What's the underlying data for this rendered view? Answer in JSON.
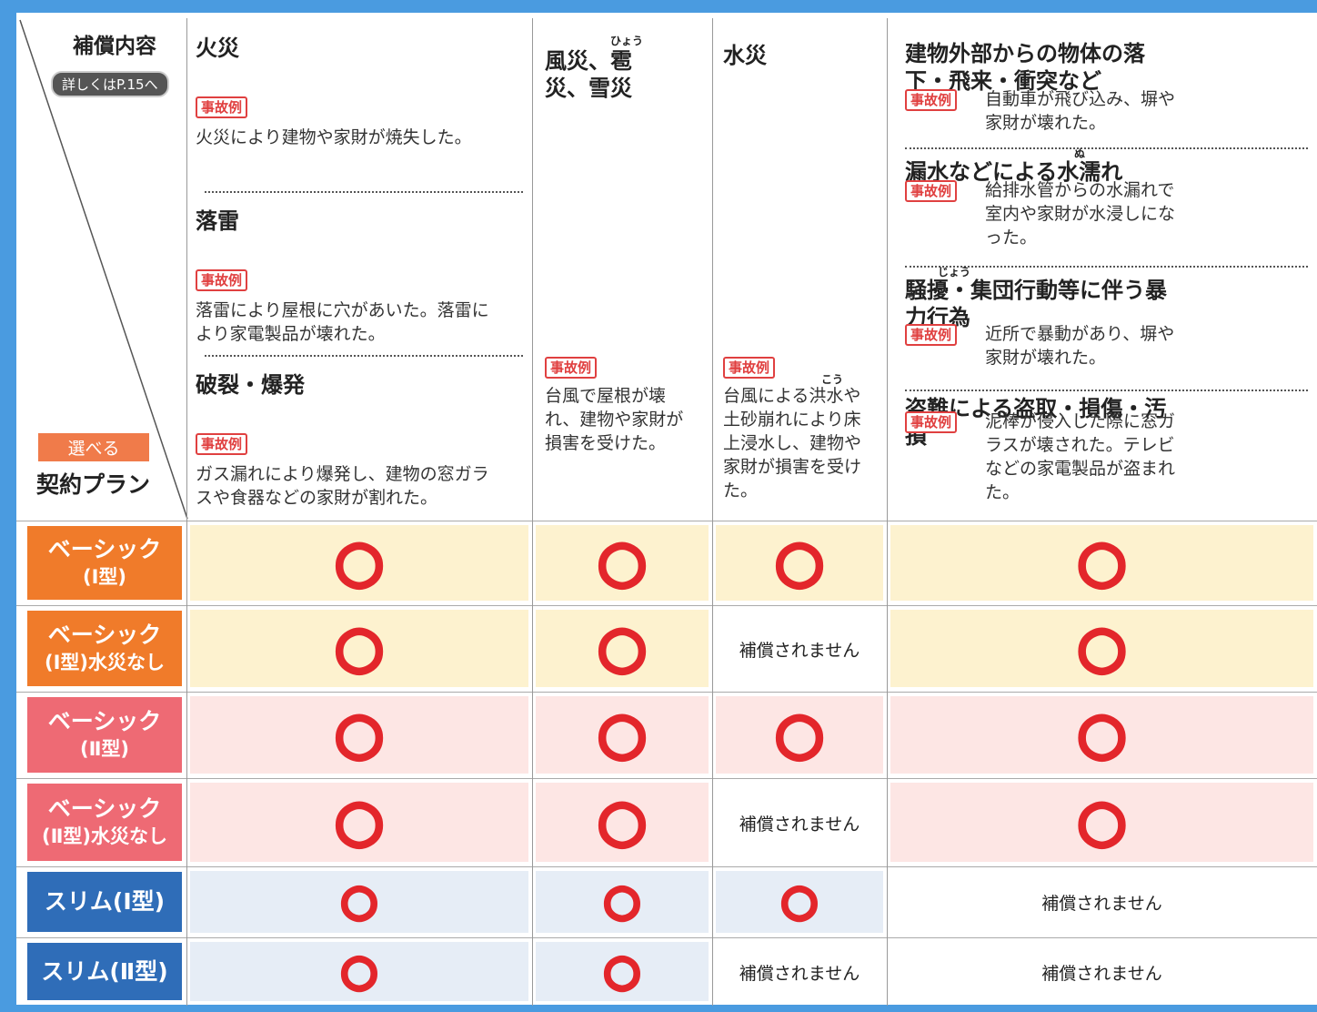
{
  "header": {
    "compensation_label": "補償内容",
    "see_page": "詳しくはP.15へ",
    "selectable": "選べる",
    "plan_label": "契約プラン"
  },
  "columns": [
    {
      "items": [
        {
          "title": "火災",
          "example_tag": "事故例",
          "example": "火災により建物や家財が焼失した。"
        },
        {
          "title": "落雷",
          "example_tag": "事故例",
          "example": "落雷により屋根に穴があいた。落雷により家電製品が壊れた。"
        },
        {
          "title": "破裂・爆発",
          "example_tag": "事故例",
          "example": "ガス漏れにより爆発し、建物の窓ガラスや食器などの家財が割れた。"
        }
      ]
    },
    {
      "items": [
        {
          "title": "風災、雹災、雪災",
          "ruby": "ひょう",
          "example_tag": "事故例",
          "example": "台風で屋根が壊れ、建物や家財が損害を受けた。"
        }
      ]
    },
    {
      "items": [
        {
          "title": "水災",
          "ruby": "こう",
          "example_tag": "事故例",
          "example": "台風による洪水や土砂崩れにより床上浸水し、建物や家財が損害を受けた。"
        }
      ]
    },
    {
      "items": [
        {
          "title": "建物外部からの物体の落下・飛来・衝突など",
          "example_tag": "事故例",
          "example": "自動車が飛び込み、塀や家財が壊れた。"
        },
        {
          "title": "漏水などによる水濡れ",
          "ruby": "ぬ",
          "example_tag": "事故例",
          "example": "給排水管からの水漏れで室内や家財が水浸しになった。"
        },
        {
          "title": "騒擾・集団行動等に伴う暴力行為",
          "ruby": "じょう",
          "example_tag": "事故例",
          "example": "近所で暴動があり、塀や家財が壊れた。"
        },
        {
          "title": "盗難による盗取・損傷・汚損",
          "example_tag": "事故例",
          "example": "泥棒が侵入した際に窓ガラスが壊された。テレビなどの家電製品が盗まれた。"
        }
      ]
    }
  ],
  "plans": [
    {
      "name": [
        "ベーシック",
        "(Ⅰ型)"
      ],
      "cells": [
        "○",
        "○",
        "○",
        "○"
      ]
    },
    {
      "name": [
        "ベーシック",
        "(Ⅰ型)水災なし"
      ],
      "cells": [
        "○",
        "○",
        "補償されません",
        "○"
      ]
    },
    {
      "name": [
        "ベーシック",
        "(Ⅱ型)"
      ],
      "cells": [
        "○",
        "○",
        "○",
        "○"
      ]
    },
    {
      "name": [
        "ベーシック",
        "(Ⅱ型)水災なし"
      ],
      "cells": [
        "○",
        "○",
        "補償されません",
        "○"
      ]
    },
    {
      "name": [
        "スリム(Ⅰ型)"
      ],
      "cells": [
        "○",
        "○",
        "○",
        "補償されません"
      ]
    },
    {
      "name": [
        "スリム(Ⅱ型)"
      ],
      "cells": [
        "○",
        "○",
        "補償されません",
        "補償されません"
      ]
    }
  ]
}
